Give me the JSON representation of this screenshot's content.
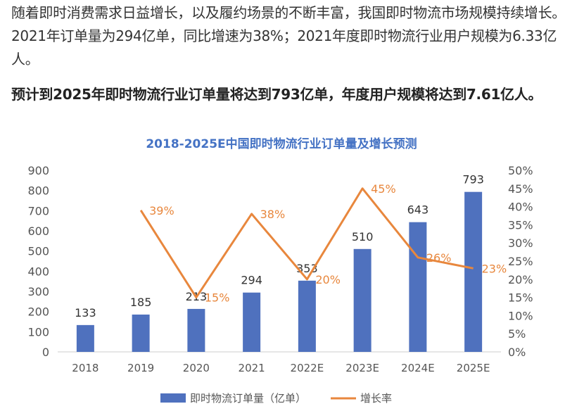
{
  "text": {
    "paragraph1": "随着即时消费需求日益增长，以及履约场景的不断丰富，我国即时物流市场规模持续增长。2021年订单量为294亿单，同比增速为38%；2021年度即时物流行业用户规模为6.33亿人。",
    "paragraph2": "预计到2025年即时物流行业订单量将达到793亿单，年度用户规模将达到7.61亿人。"
  },
  "chart_data": {
    "type": "bar+line",
    "title": "2018-2025E中国即时物流行业订单量及增长预测",
    "categories": [
      "2018",
      "2019",
      "2020",
      "2021",
      "2022E",
      "2023E",
      "2024E",
      "2025E"
    ],
    "series": [
      {
        "name": "即时物流订单量（亿单）",
        "type": "bar",
        "axis": "left",
        "color": "#4f71be",
        "values": [
          133,
          185,
          213,
          294,
          353,
          510,
          643,
          793
        ],
        "labels": [
          "133",
          "185",
          "213",
          "294",
          "353",
          "510",
          "643",
          "793"
        ]
      },
      {
        "name": "增长率",
        "type": "line",
        "axis": "right",
        "color": "#e8873d",
        "values": [
          null,
          39,
          15,
          38,
          20,
          45,
          26,
          23
        ],
        "labels": [
          "",
          "39%",
          "15%",
          "38%",
          "20%",
          "45%",
          "26%",
          "23%"
        ]
      }
    ],
    "ylim_left": [
      0,
      900
    ],
    "yticks_left": [
      "0",
      "100",
      "200",
      "300",
      "400",
      "500",
      "600",
      "700",
      "800",
      "900"
    ],
    "ylim_right": [
      0,
      50
    ],
    "yticks_right": [
      "0%",
      "5%",
      "10%",
      "15%",
      "20%",
      "25%",
      "30%",
      "35%",
      "40%",
      "45%",
      "50%"
    ],
    "grid": false,
    "legend": "bottom",
    "title_color": "#4472c4"
  }
}
